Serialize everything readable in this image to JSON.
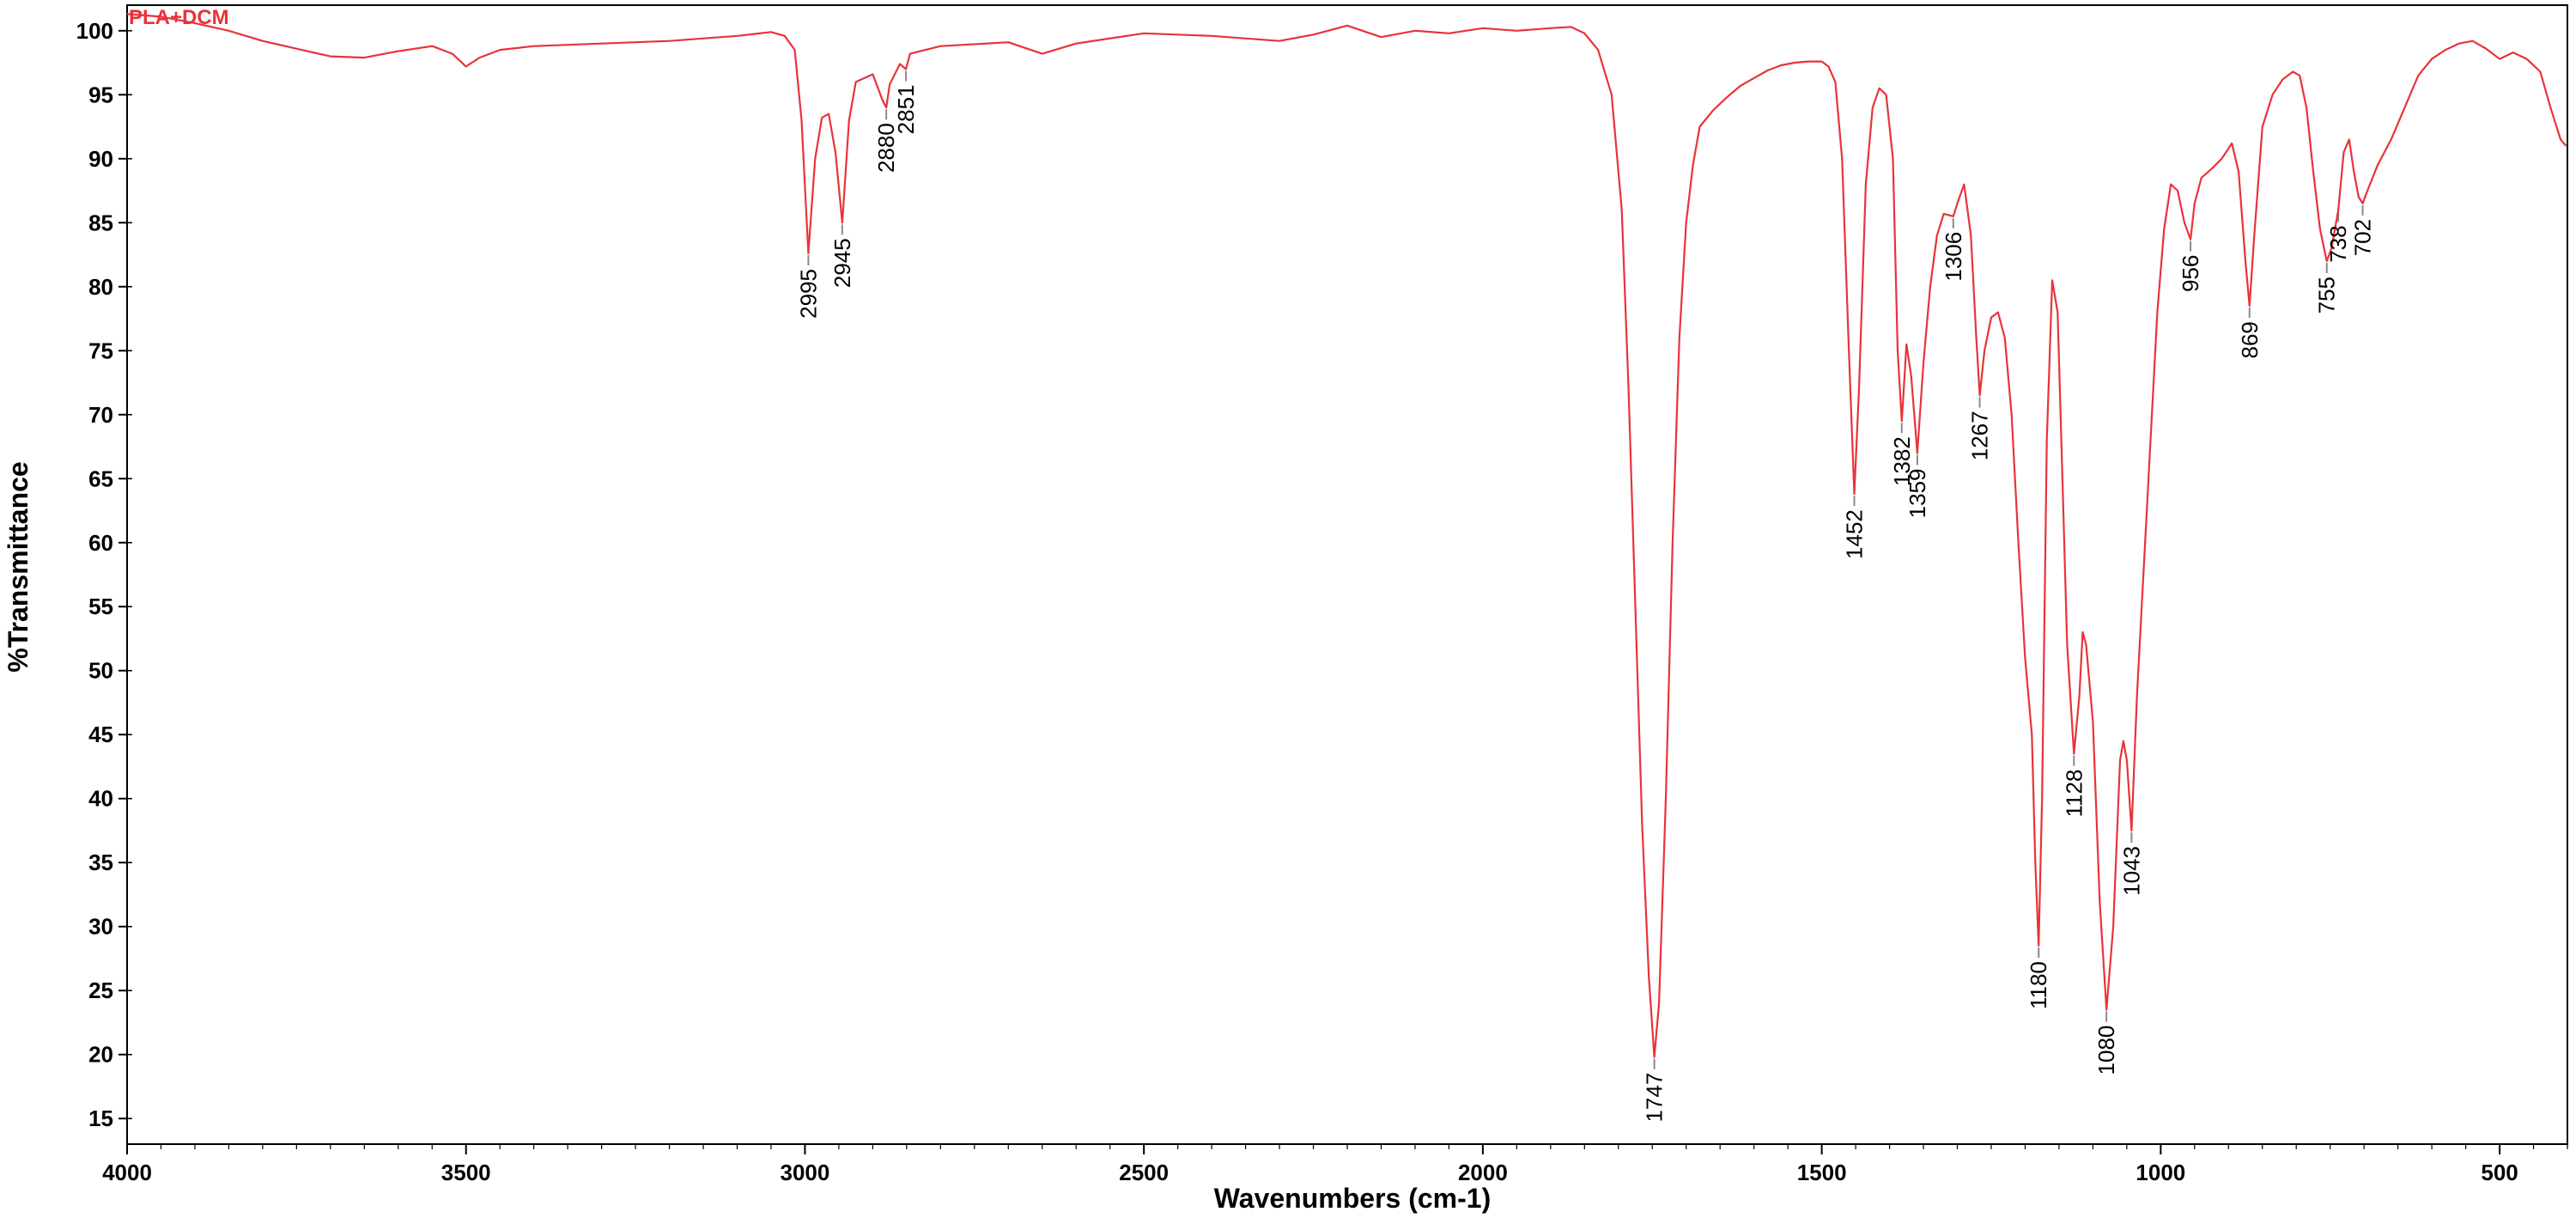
{
  "chart_data": {
    "type": "line",
    "title": "",
    "series_label": "PLA+DCM",
    "xlabel": "Wavenumbers (cm-1)",
    "ylabel": "%Transmittance",
    "xlim": [
      4000,
      400
    ],
    "ylim": [
      13,
      102
    ],
    "x_reversed": true,
    "xticks": [
      4000,
      3500,
      3000,
      2500,
      2000,
      1500,
      1000,
      500
    ],
    "yticks": [
      15,
      20,
      25,
      30,
      35,
      40,
      45,
      50,
      55,
      60,
      65,
      70,
      75,
      80,
      85,
      90,
      95,
      100
    ],
    "grid": false,
    "line_color": "#e8333a",
    "leader_color": "#8a8a8a",
    "series": [
      {
        "name": "PLA+DCM",
        "points": [
          [
            4000,
            101.3
          ],
          [
            3950,
            101.1
          ],
          [
            3900,
            100.6
          ],
          [
            3850,
            100.0
          ],
          [
            3800,
            99.2
          ],
          [
            3750,
            98.6
          ],
          [
            3700,
            98.0
          ],
          [
            3650,
            97.9
          ],
          [
            3600,
            98.4
          ],
          [
            3550,
            98.8
          ],
          [
            3520,
            98.2
          ],
          [
            3500,
            97.2
          ],
          [
            3480,
            97.9
          ],
          [
            3450,
            98.5
          ],
          [
            3400,
            98.8
          ],
          [
            3300,
            99.0
          ],
          [
            3200,
            99.2
          ],
          [
            3100,
            99.6
          ],
          [
            3050,
            99.9
          ],
          [
            3030,
            99.6
          ],
          [
            3015,
            98.5
          ],
          [
            3005,
            93.0
          ],
          [
            2995,
            82.6
          ],
          [
            2985,
            90.0
          ],
          [
            2975,
            93.2
          ],
          [
            2965,
            93.5
          ],
          [
            2955,
            90.5
          ],
          [
            2945,
            85.0
          ],
          [
            2935,
            93.0
          ],
          [
            2925,
            96.0
          ],
          [
            2900,
            96.6
          ],
          [
            2885,
            94.5
          ],
          [
            2880,
            94.0
          ],
          [
            2875,
            95.8
          ],
          [
            2860,
            97.4
          ],
          [
            2851,
            97.0
          ],
          [
            2845,
            98.2
          ],
          [
            2800,
            98.8
          ],
          [
            2700,
            99.1
          ],
          [
            2650,
            98.2
          ],
          [
            2600,
            99.0
          ],
          [
            2500,
            99.8
          ],
          [
            2400,
            99.6
          ],
          [
            2300,
            99.2
          ],
          [
            2250,
            99.7
          ],
          [
            2200,
            100.4
          ],
          [
            2150,
            99.5
          ],
          [
            2100,
            100.0
          ],
          [
            2050,
            99.8
          ],
          [
            2000,
            100.2
          ],
          [
            1950,
            100.0
          ],
          [
            1900,
            100.2
          ],
          [
            1870,
            100.3
          ],
          [
            1850,
            99.8
          ],
          [
            1830,
            98.5
          ],
          [
            1810,
            95.0
          ],
          [
            1795,
            86.0
          ],
          [
            1785,
            72.0
          ],
          [
            1775,
            55.0
          ],
          [
            1765,
            38.0
          ],
          [
            1755,
            26.0
          ],
          [
            1747,
            19.8
          ],
          [
            1740,
            24.0
          ],
          [
            1730,
            40.0
          ],
          [
            1720,
            60.0
          ],
          [
            1710,
            76.0
          ],
          [
            1700,
            85.0
          ],
          [
            1690,
            89.5
          ],
          [
            1680,
            92.5
          ],
          [
            1660,
            93.8
          ],
          [
            1640,
            94.8
          ],
          [
            1620,
            95.7
          ],
          [
            1600,
            96.3
          ],
          [
            1580,
            96.9
          ],
          [
            1560,
            97.3
          ],
          [
            1540,
            97.5
          ],
          [
            1520,
            97.6
          ],
          [
            1500,
            97.6
          ],
          [
            1490,
            97.2
          ],
          [
            1480,
            96.0
          ],
          [
            1470,
            90.0
          ],
          [
            1460,
            75.0
          ],
          [
            1452,
            63.8
          ],
          [
            1445,
            72.0
          ],
          [
            1435,
            88.0
          ],
          [
            1425,
            94.0
          ],
          [
            1415,
            95.5
          ],
          [
            1405,
            95.0
          ],
          [
            1395,
            90.0
          ],
          [
            1388,
            75.0
          ],
          [
            1382,
            69.5
          ],
          [
            1375,
            75.5
          ],
          [
            1368,
            73.0
          ],
          [
            1359,
            67.0
          ],
          [
            1350,
            74.0
          ],
          [
            1340,
            80.0
          ],
          [
            1330,
            84.0
          ],
          [
            1320,
            85.7
          ],
          [
            1306,
            85.5
          ],
          [
            1300,
            86.5
          ],
          [
            1290,
            88.0
          ],
          [
            1280,
            84.0
          ],
          [
            1272,
            76.0
          ],
          [
            1267,
            71.5
          ],
          [
            1260,
            75.0
          ],
          [
            1250,
            77.6
          ],
          [
            1240,
            78.0
          ],
          [
            1230,
            76.0
          ],
          [
            1220,
            70.0
          ],
          [
            1210,
            60.0
          ],
          [
            1200,
            51.0
          ],
          [
            1190,
            45.0
          ],
          [
            1185,
            35.0
          ],
          [
            1180,
            28.5
          ],
          [
            1175,
            40.0
          ],
          [
            1168,
            68.0
          ],
          [
            1160,
            80.5
          ],
          [
            1152,
            78.0
          ],
          [
            1145,
            65.0
          ],
          [
            1138,
            52.0
          ],
          [
            1128,
            43.5
          ],
          [
            1120,
            48.0
          ],
          [
            1115,
            53.0
          ],
          [
            1110,
            52.0
          ],
          [
            1100,
            46.0
          ],
          [
            1090,
            32.0
          ],
          [
            1080,
            23.5
          ],
          [
            1070,
            30.0
          ],
          [
            1060,
            43.0
          ],
          [
            1055,
            44.5
          ],
          [
            1050,
            43.0
          ],
          [
            1043,
            37.5
          ],
          [
            1035,
            48.0
          ],
          [
            1025,
            58.0
          ],
          [
            1015,
            68.0
          ],
          [
            1005,
            78.0
          ],
          [
            995,
            84.5
          ],
          [
            985,
            88.0
          ],
          [
            975,
            87.5
          ],
          [
            965,
            85.0
          ],
          [
            956,
            83.7
          ],
          [
            950,
            86.5
          ],
          [
            940,
            88.5
          ],
          [
            925,
            89.2
          ],
          [
            910,
            90.0
          ],
          [
            895,
            91.2
          ],
          [
            885,
            89.0
          ],
          [
            875,
            82.0
          ],
          [
            869,
            78.5
          ],
          [
            862,
            84.0
          ],
          [
            850,
            92.5
          ],
          [
            835,
            95.0
          ],
          [
            820,
            96.2
          ],
          [
            805,
            96.8
          ],
          [
            795,
            96.5
          ],
          [
            785,
            94.0
          ],
          [
            775,
            89.0
          ],
          [
            765,
            84.5
          ],
          [
            755,
            82.0
          ],
          [
            748,
            83.0
          ],
          [
            738,
            86.0
          ],
          [
            730,
            90.5
          ],
          [
            722,
            91.5
          ],
          [
            715,
            89.0
          ],
          [
            708,
            87.0
          ],
          [
            702,
            86.5
          ],
          [
            695,
            87.5
          ],
          [
            680,
            89.5
          ],
          [
            660,
            91.5
          ],
          [
            640,
            94.0
          ],
          [
            620,
            96.5
          ],
          [
            600,
            97.8
          ],
          [
            580,
            98.5
          ],
          [
            560,
            99.0
          ],
          [
            540,
            99.2
          ],
          [
            520,
            98.6
          ],
          [
            500,
            97.8
          ],
          [
            480,
            98.3
          ],
          [
            460,
            97.8
          ],
          [
            440,
            96.8
          ],
          [
            425,
            94.0
          ],
          [
            410,
            91.5
          ],
          [
            402,
            91.0
          ]
        ]
      }
    ],
    "peaks": [
      {
        "label": "2995",
        "x": 2995,
        "y": 82.6
      },
      {
        "label": "2945",
        "x": 2945,
        "y": 85.0
      },
      {
        "label": "2880",
        "x": 2880,
        "y": 94.0
      },
      {
        "label": "2851",
        "x": 2851,
        "y": 97.0
      },
      {
        "label": "1747",
        "x": 1747,
        "y": 19.8
      },
      {
        "label": "1452",
        "x": 1452,
        "y": 63.8
      },
      {
        "label": "1382",
        "x": 1382,
        "y": 69.5
      },
      {
        "label": "1359",
        "x": 1359,
        "y": 67.0
      },
      {
        "label": "1306",
        "x": 1306,
        "y": 85.5
      },
      {
        "label": "1267",
        "x": 1267,
        "y": 71.5
      },
      {
        "label": "1180",
        "x": 1180,
        "y": 28.5
      },
      {
        "label": "1128",
        "x": 1128,
        "y": 43.5
      },
      {
        "label": "1080",
        "x": 1080,
        "y": 23.5
      },
      {
        "label": "1043",
        "x": 1043,
        "y": 37.5
      },
      {
        "label": "956",
        "x": 956,
        "y": 83.7
      },
      {
        "label": "869",
        "x": 869,
        "y": 78.5
      },
      {
        "label": "755",
        "x": 755,
        "y": 82.0
      },
      {
        "label": "738",
        "x": 738,
        "y": 86.0
      },
      {
        "label": "702",
        "x": 702,
        "y": 86.5
      }
    ]
  }
}
